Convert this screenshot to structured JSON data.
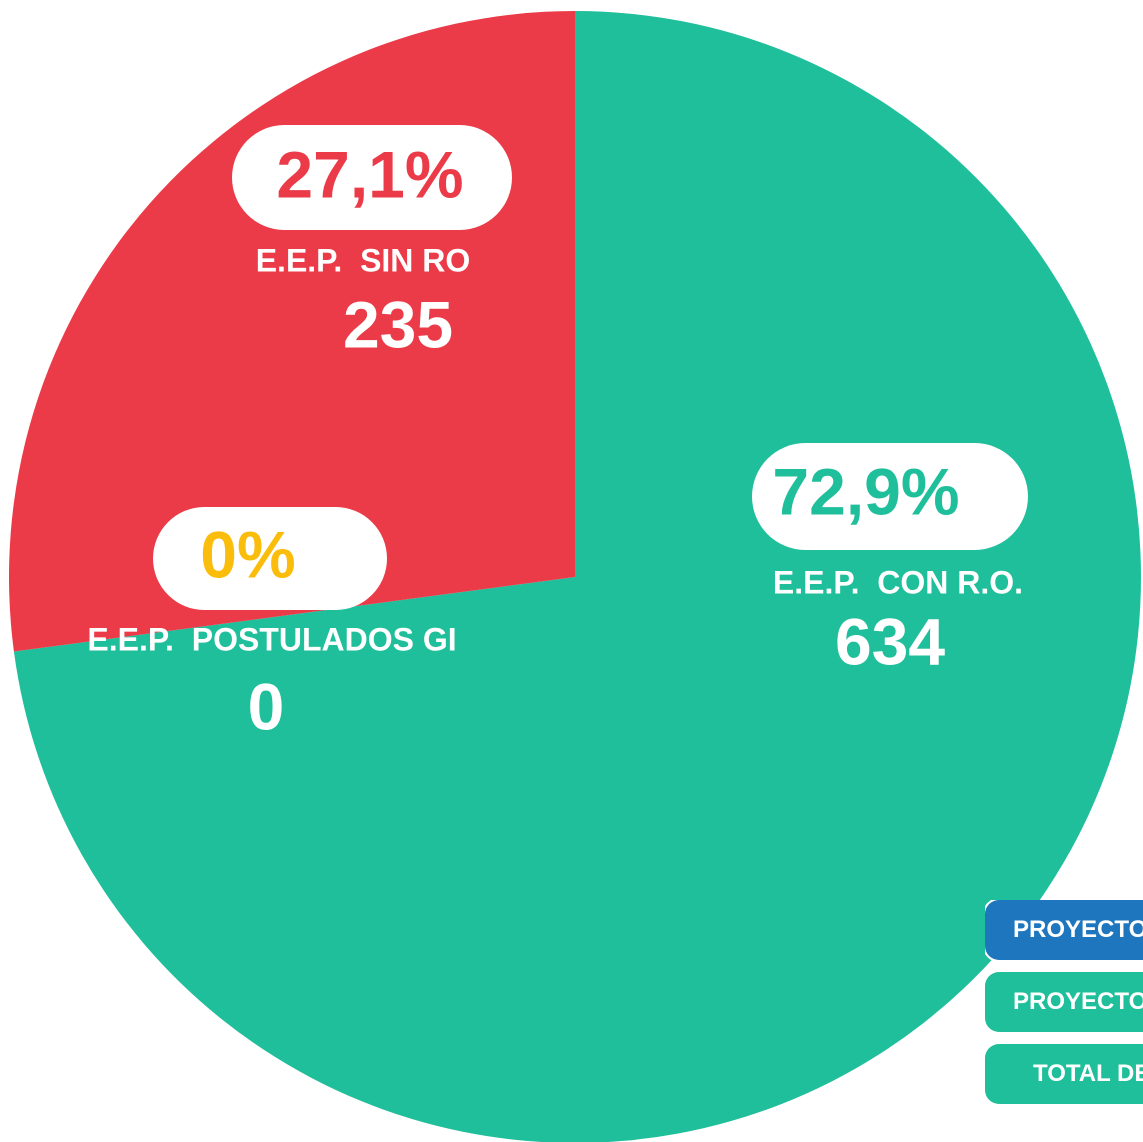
{
  "chart_data": {
    "type": "pie",
    "categories": [
      "E.E.P.  CON R.O.",
      "E.E.P.  SIN RO",
      "E.E.P.  POSTULADOS GI"
    ],
    "values": [
      72.9,
      27.1,
      0
    ],
    "value_labels": [
      "72,9%",
      "27,1%",
      "0%"
    ],
    "counts": [
      634,
      235,
      0
    ],
    "colors": [
      "#20bf9b",
      "#ec3b48",
      "#fbbd0b"
    ]
  },
  "buttons": [
    {
      "label": "PROYECTO",
      "color": "#1e76be"
    },
    {
      "label": "PROYECTOS",
      "color": "#20bf9b"
    },
    {
      "label": "TOTAL DE",
      "color": "#20bf9b"
    }
  ]
}
